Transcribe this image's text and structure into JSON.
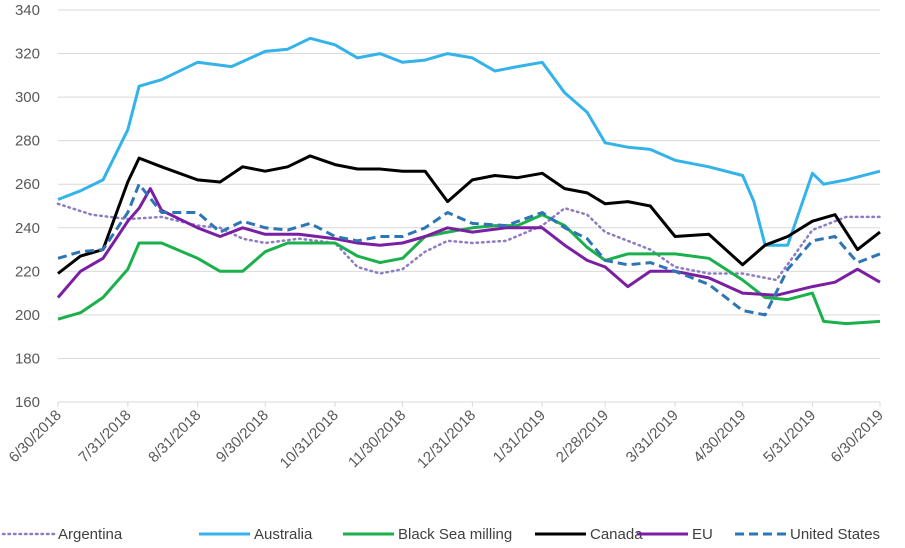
{
  "chart_data": {
    "type": "line",
    "title": "",
    "xlabel": "",
    "ylabel": "",
    "ylim": [
      160,
      340
    ],
    "yticks": [
      160,
      180,
      200,
      220,
      240,
      260,
      280,
      300,
      320,
      340
    ],
    "xlim": [
      "6/30/2018",
      "6/30/2019"
    ],
    "xtick_labels": [
      "6/30/2018",
      "7/31/2018",
      "8/31/2018",
      "9/30/2018",
      "10/31/2018",
      "11/30/2018",
      "12/31/2018",
      "1/31/2019",
      "2/28/2019",
      "3/31/2019",
      "4/30/2019",
      "5/31/2019",
      "6/30/2019"
    ],
    "grid": "horizontal",
    "legend_position": "bottom",
    "series": [
      {
        "name": "Argentina",
        "color": "#8e7cc3",
        "style": "dotted",
        "points": [
          [
            "6/30/2018",
            251
          ],
          [
            "7/15/2018",
            246
          ],
          [
            "7/31/2018",
            244
          ],
          [
            "8/15/2018",
            245
          ],
          [
            "8/31/2018",
            241
          ],
          [
            "9/10/2018",
            240
          ],
          [
            "9/20/2018",
            235
          ],
          [
            "9/30/2018",
            233
          ],
          [
            "10/15/2018",
            235
          ],
          [
            "10/31/2018",
            233
          ],
          [
            "11/10/2018",
            222
          ],
          [
            "11/20/2018",
            219
          ],
          [
            "11/30/2018",
            221
          ],
          [
            "12/10/2018",
            229
          ],
          [
            "12/20/2018",
            234
          ],
          [
            "12/31/2018",
            233
          ],
          [
            "1/15/2019",
            234
          ],
          [
            "1/31/2019",
            241
          ],
          [
            "2/10/2019",
            249
          ],
          [
            "2/20/2019",
            246
          ],
          [
            "2/28/2019",
            238
          ],
          [
            "3/10/2019",
            234
          ],
          [
            "3/20/2019",
            230
          ],
          [
            "3/31/2019",
            222
          ],
          [
            "4/15/2019",
            219
          ],
          [
            "4/30/2019",
            219
          ],
          [
            "5/15/2019",
            216
          ],
          [
            "5/31/2019",
            239
          ],
          [
            "6/15/2019",
            245
          ],
          [
            "6/30/2019",
            245
          ]
        ]
      },
      {
        "name": "Australia",
        "color": "#33b3ea",
        "style": "solid",
        "points": [
          [
            "6/30/2018",
            253
          ],
          [
            "7/10/2018",
            257
          ],
          [
            "7/20/2018",
            262
          ],
          [
            "7/31/2018",
            285
          ],
          [
            "8/5/2018",
            305
          ],
          [
            "8/15/2018",
            308
          ],
          [
            "8/31/2018",
            316
          ],
          [
            "9/15/2018",
            314
          ],
          [
            "9/30/2018",
            321
          ],
          [
            "10/10/2018",
            322
          ],
          [
            "10/20/2018",
            327
          ],
          [
            "10/31/2018",
            324
          ],
          [
            "11/10/2018",
            318
          ],
          [
            "11/20/2018",
            320
          ],
          [
            "11/30/2018",
            316
          ],
          [
            "12/10/2018",
            317
          ],
          [
            "12/20/2018",
            320
          ],
          [
            "12/31/2018",
            318
          ],
          [
            "1/10/2019",
            312
          ],
          [
            "1/20/2019",
            314
          ],
          [
            "1/31/2019",
            316
          ],
          [
            "2/10/2019",
            302
          ],
          [
            "2/20/2019",
            293
          ],
          [
            "2/28/2019",
            279
          ],
          [
            "3/10/2019",
            277
          ],
          [
            "3/20/2019",
            276
          ],
          [
            "3/31/2019",
            271
          ],
          [
            "4/15/2019",
            268
          ],
          [
            "4/30/2019",
            264
          ],
          [
            "5/5/2019",
            252
          ],
          [
            "5/10/2019",
            232
          ],
          [
            "5/20/2019",
            232
          ],
          [
            "5/31/2019",
            265
          ],
          [
            "6/5/2019",
            260
          ],
          [
            "6/15/2019",
            262
          ],
          [
            "6/30/2019",
            266
          ]
        ]
      },
      {
        "name": "Black Sea milling",
        "color": "#1ab04b",
        "style": "solid",
        "points": [
          [
            "6/30/2018",
            198
          ],
          [
            "7/10/2018",
            201
          ],
          [
            "7/20/2018",
            208
          ],
          [
            "7/31/2018",
            221
          ],
          [
            "8/5/2018",
            233
          ],
          [
            "8/15/2018",
            233
          ],
          [
            "8/31/2018",
            226
          ],
          [
            "9/10/2018",
            220
          ],
          [
            "9/20/2018",
            220
          ],
          [
            "9/30/2018",
            229
          ],
          [
            "10/10/2018",
            233
          ],
          [
            "10/31/2018",
            233
          ],
          [
            "11/10/2018",
            227
          ],
          [
            "11/20/2018",
            224
          ],
          [
            "11/30/2018",
            226
          ],
          [
            "12/10/2018",
            236
          ],
          [
            "12/20/2018",
            238
          ],
          [
            "12/31/2018",
            240
          ],
          [
            "1/10/2019",
            241
          ],
          [
            "1/20/2019",
            241
          ],
          [
            "1/31/2019",
            246
          ],
          [
            "2/10/2019",
            241
          ],
          [
            "2/20/2019",
            231
          ],
          [
            "2/28/2019",
            225
          ],
          [
            "3/10/2019",
            228
          ],
          [
            "3/20/2019",
            228
          ],
          [
            "3/31/2019",
            228
          ],
          [
            "4/15/2019",
            226
          ],
          [
            "4/30/2019",
            216
          ],
          [
            "5/10/2019",
            208
          ],
          [
            "5/20/2019",
            207
          ],
          [
            "5/31/2019",
            210
          ],
          [
            "6/5/2019",
            197
          ],
          [
            "6/15/2019",
            196
          ],
          [
            "6/30/2019",
            197
          ]
        ]
      },
      {
        "name": "Canada",
        "color": "#000000",
        "style": "solid",
        "points": [
          [
            "6/30/2018",
            219
          ],
          [
            "7/10/2018",
            227
          ],
          [
            "7/20/2018",
            230
          ],
          [
            "7/31/2018",
            261
          ],
          [
            "8/5/2018",
            272
          ],
          [
            "8/15/2018",
            268
          ],
          [
            "8/31/2018",
            262
          ],
          [
            "9/10/2018",
            261
          ],
          [
            "9/20/2018",
            268
          ],
          [
            "9/30/2018",
            266
          ],
          [
            "10/10/2018",
            268
          ],
          [
            "10/20/2018",
            273
          ],
          [
            "10/31/2018",
            269
          ],
          [
            "11/10/2018",
            267
          ],
          [
            "11/20/2018",
            267
          ],
          [
            "11/30/2018",
            266
          ],
          [
            "12/10/2018",
            266
          ],
          [
            "12/20/2018",
            252
          ],
          [
            "12/31/2018",
            262
          ],
          [
            "1/10/2019",
            264
          ],
          [
            "1/20/2019",
            263
          ],
          [
            "1/31/2019",
            265
          ],
          [
            "2/10/2019",
            258
          ],
          [
            "2/20/2019",
            256
          ],
          [
            "2/28/2019",
            251
          ],
          [
            "3/10/2019",
            252
          ],
          [
            "3/20/2019",
            250
          ],
          [
            "3/31/2019",
            236
          ],
          [
            "4/15/2019",
            237
          ],
          [
            "4/30/2019",
            223
          ],
          [
            "5/10/2019",
            232
          ],
          [
            "5/20/2019",
            236
          ],
          [
            "5/31/2019",
            243
          ],
          [
            "6/10/2019",
            246
          ],
          [
            "6/20/2019",
            230
          ],
          [
            "6/30/2019",
            238
          ]
        ]
      },
      {
        "name": "EU",
        "color": "#7b1fa2",
        "style": "solid",
        "points": [
          [
            "6/30/2018",
            208
          ],
          [
            "7/10/2018",
            220
          ],
          [
            "7/20/2018",
            226
          ],
          [
            "7/31/2018",
            243
          ],
          [
            "8/5/2018",
            249
          ],
          [
            "8/10/2018",
            258
          ],
          [
            "8/15/2018",
            248
          ],
          [
            "8/31/2018",
            240
          ],
          [
            "9/10/2018",
            236
          ],
          [
            "9/20/2018",
            240
          ],
          [
            "9/30/2018",
            237
          ],
          [
            "10/15/2018",
            237
          ],
          [
            "10/31/2018",
            235
          ],
          [
            "11/10/2018",
            233
          ],
          [
            "11/20/2018",
            232
          ],
          [
            "11/30/2018",
            233
          ],
          [
            "12/10/2018",
            236
          ],
          [
            "12/20/2018",
            240
          ],
          [
            "12/31/2018",
            238
          ],
          [
            "1/15/2019",
            240
          ],
          [
            "1/31/2019",
            240
          ],
          [
            "2/10/2019",
            232
          ],
          [
            "2/20/2019",
            225
          ],
          [
            "2/28/2019",
            222
          ],
          [
            "3/10/2019",
            213
          ],
          [
            "3/20/2019",
            220
          ],
          [
            "3/31/2019",
            220
          ],
          [
            "4/15/2019",
            217
          ],
          [
            "4/30/2019",
            210
          ],
          [
            "5/15/2019",
            209
          ],
          [
            "5/31/2019",
            213
          ],
          [
            "6/10/2019",
            215
          ],
          [
            "6/20/2019",
            221
          ],
          [
            "6/30/2019",
            215
          ]
        ]
      },
      {
        "name": "United States",
        "color": "#2e75b6",
        "style": "dashed",
        "points": [
          [
            "6/30/2018",
            226
          ],
          [
            "7/10/2018",
            229
          ],
          [
            "7/20/2018",
            230
          ],
          [
            "7/31/2018",
            247
          ],
          [
            "8/5/2018",
            260
          ],
          [
            "8/15/2018",
            247
          ],
          [
            "8/31/2018",
            247
          ],
          [
            "9/10/2018",
            238
          ],
          [
            "9/20/2018",
            243
          ],
          [
            "9/30/2018",
            240
          ],
          [
            "10/10/2018",
            239
          ],
          [
            "10/20/2018",
            242
          ],
          [
            "10/31/2018",
            236
          ],
          [
            "11/10/2018",
            234
          ],
          [
            "11/20/2018",
            236
          ],
          [
            "11/30/2018",
            236
          ],
          [
            "12/10/2018",
            240
          ],
          [
            "12/20/2018",
            247
          ],
          [
            "12/31/2018",
            242
          ],
          [
            "1/15/2019",
            241
          ],
          [
            "1/31/2019",
            247
          ],
          [
            "2/10/2019",
            240
          ],
          [
            "2/20/2019",
            235
          ],
          [
            "2/28/2019",
            225
          ],
          [
            "3/10/2019",
            223
          ],
          [
            "3/20/2019",
            224
          ],
          [
            "3/31/2019",
            220
          ],
          [
            "4/15/2019",
            214
          ],
          [
            "4/30/2019",
            202
          ],
          [
            "5/10/2019",
            200
          ],
          [
            "5/20/2019",
            221
          ],
          [
            "5/31/2019",
            234
          ],
          [
            "6/10/2019",
            236
          ],
          [
            "6/20/2019",
            224
          ],
          [
            "6/30/2019",
            228
          ]
        ]
      }
    ]
  }
}
